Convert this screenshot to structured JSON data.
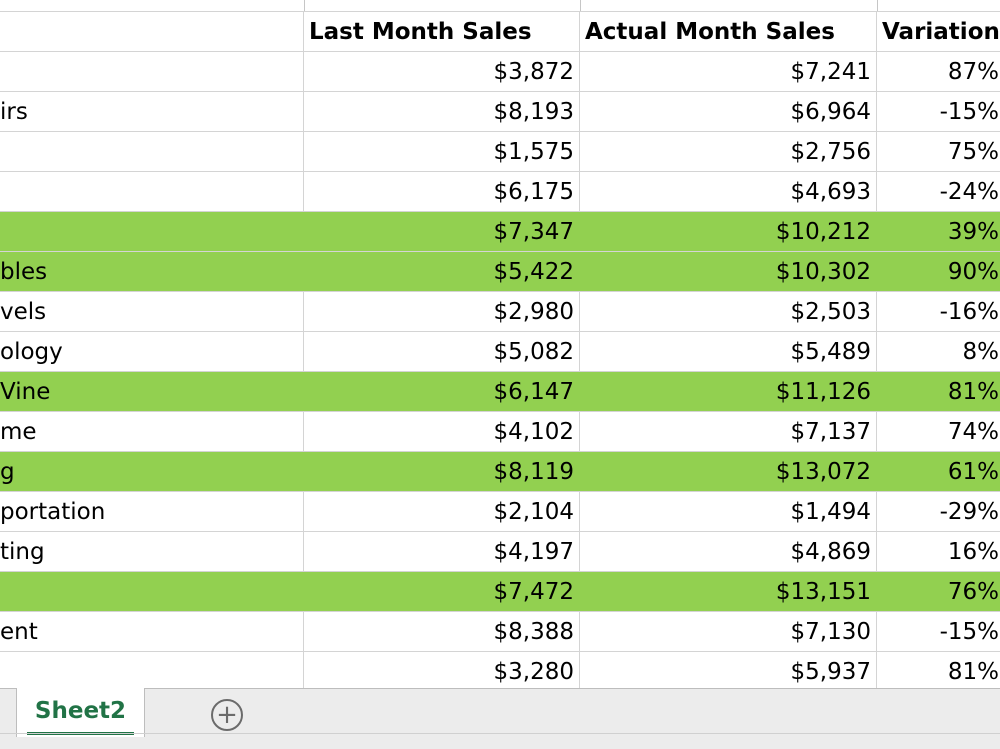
{
  "sheet": {
    "headers": [
      "",
      "Last Month Sales",
      "Actual Month Sales",
      "Variation"
    ],
    "rows": [
      {
        "label": "",
        "last": "$3,872",
        "actual": "$7,241",
        "variation": "87%",
        "highlight": false
      },
      {
        "label": "irs",
        "last": "$8,193",
        "actual": "$6,964",
        "variation": "-15%",
        "highlight": false
      },
      {
        "label": "",
        "last": "$1,575",
        "actual": "$2,756",
        "variation": "75%",
        "highlight": false
      },
      {
        "label": "",
        "last": "$6,175",
        "actual": "$4,693",
        "variation": "-24%",
        "highlight": false
      },
      {
        "label": "",
        "last": "$7,347",
        "actual": "$10,212",
        "variation": "39%",
        "highlight": true
      },
      {
        "label": "bles",
        "last": "$5,422",
        "actual": "$10,302",
        "variation": "90%",
        "highlight": true
      },
      {
        "label": "vels",
        "last": "$2,980",
        "actual": "$2,503",
        "variation": "-16%",
        "highlight": false
      },
      {
        "label": "ology",
        "last": "$5,082",
        "actual": "$5,489",
        "variation": "8%",
        "highlight": false
      },
      {
        "label": "Vine",
        "last": "$6,147",
        "actual": "$11,126",
        "variation": "81%",
        "highlight": true
      },
      {
        "label": "me",
        "last": "$4,102",
        "actual": "$7,137",
        "variation": "74%",
        "highlight": false
      },
      {
        "label": "g",
        "last": "$8,119",
        "actual": "$13,072",
        "variation": "61%",
        "highlight": true
      },
      {
        "label": "portation",
        "last": "$2,104",
        "actual": "$1,494",
        "variation": "-29%",
        "highlight": false
      },
      {
        "label": "ting",
        "last": "$4,197",
        "actual": "$4,869",
        "variation": "16%",
        "highlight": false
      },
      {
        "label": "",
        "last": "$7,472",
        "actual": "$13,151",
        "variation": "76%",
        "highlight": true
      },
      {
        "label": "ent",
        "last": "$8,388",
        "actual": "$7,130",
        "variation": "-15%",
        "highlight": false
      },
      {
        "label": "",
        "last": "$3,280",
        "actual": "$5,937",
        "variation": "81%",
        "highlight": false
      }
    ]
  },
  "tabs": {
    "active_label": "Sheet2",
    "add_symbol": "⊕",
    "add_icon": "plus-circle-icon"
  },
  "colors": {
    "highlight": "#92d050",
    "tab_accent": "#217346"
  }
}
